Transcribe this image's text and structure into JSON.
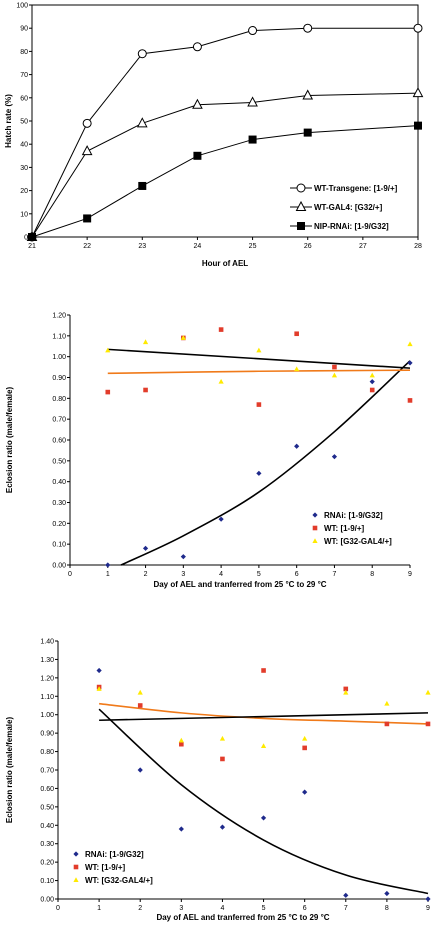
{
  "chart_data": [
    {
      "type": "line",
      "xlabel": "Hour of AEL",
      "ylabel": "Hatch rate (%)",
      "x": [
        21,
        22,
        23,
        24,
        25,
        26,
        27,
        28
      ],
      "xticks": [
        "21",
        "22",
        "23",
        "24",
        "25",
        "26",
        "27",
        "28"
      ],
      "xlim": [
        21,
        28
      ],
      "ylim": [
        0,
        100
      ],
      "yticks": [
        "0",
        "10",
        "20",
        "30",
        "40",
        "50",
        "60",
        "70",
        "80",
        "90",
        "100"
      ],
      "grid": false,
      "legend_position": "bottom-right",
      "series": [
        {
          "name": "WT-Transgene: [1-9/+]",
          "marker": "open-circle",
          "x": [
            21,
            22,
            23,
            24,
            25,
            26,
            28
          ],
          "values": [
            0,
            49,
            79,
            82,
            89,
            90,
            90
          ]
        },
        {
          "name": "WT-GAL4: [G32/+]",
          "marker": "open-triangle",
          "x": [
            21,
            22,
            23,
            24,
            25,
            26,
            28
          ],
          "values": [
            0,
            37,
            49,
            57,
            58,
            61,
            62
          ]
        },
        {
          "name": "NIP-RNAi: [1-9/G32]",
          "marker": "filled-square",
          "x": [
            21,
            22,
            23,
            24,
            25,
            26,
            28
          ],
          "values": [
            0,
            8,
            22,
            35,
            42,
            45,
            48
          ]
        }
      ]
    },
    {
      "type": "scatter",
      "xlabel": "Day of AEL and tranferred from 25 °C to 29 °C",
      "ylabel": "Eclosion ratio (male/female)",
      "xlim": [
        0,
        9
      ],
      "xticks": [
        "0",
        "1",
        "2",
        "3",
        "4",
        "5",
        "6",
        "7",
        "8",
        "9"
      ],
      "ylim": [
        0,
        1.2
      ],
      "yticks": [
        "0.00",
        "0.10",
        "0.20",
        "0.30",
        "0.40",
        "0.50",
        "0.60",
        "0.70",
        "0.80",
        "0.90",
        "1.00",
        "1.10",
        "1.20"
      ],
      "grid": false,
      "legend_position": "bottom-right",
      "series": [
        {
          "name": "RNAi: [1-9/G32]",
          "color": "#1f2a8c",
          "marker": "diamond",
          "x": [
            1,
            2,
            3,
            4,
            5,
            6,
            7,
            8,
            9
          ],
          "values": [
            0.0,
            0.08,
            0.04,
            0.22,
            0.44,
            0.57,
            0.52,
            0.88,
            0.97
          ],
          "trend": {
            "type": "poly2",
            "color": "#000000",
            "points": [
              [
                1.35,
                0
              ],
              [
                3,
                0.14
              ],
              [
                5,
                0.35
              ],
              [
                7,
                0.64
              ],
              [
                9,
                0.98
              ]
            ]
          }
        },
        {
          "name": "WT: [1-9/+]",
          "color": "#e23c2b",
          "marker": "square",
          "x": [
            1,
            2,
            3,
            4,
            5,
            6,
            7,
            8,
            9
          ],
          "values": [
            0.83,
            0.84,
            1.09,
            1.13,
            0.77,
            1.11,
            0.95,
            0.84,
            0.79
          ],
          "trend": {
            "type": "poly2",
            "color": "#f07a1a",
            "points": [
              [
                1,
                0.92
              ],
              [
                5,
                0.93
              ],
              [
                9,
                0.935
              ]
            ]
          }
        },
        {
          "name": "WT: [G32-GAL4/+]",
          "color": "#ffea00",
          "marker": "triangle",
          "x": [
            1,
            2,
            3,
            4,
            5,
            6,
            7,
            8,
            9
          ],
          "values": [
            1.03,
            1.07,
            1.09,
            0.88,
            1.03,
            0.94,
            0.91,
            0.91,
            1.06
          ],
          "trend": {
            "type": "linear",
            "color": "#000000",
            "points": [
              [
                1,
                1.035
              ],
              [
                9,
                0.945
              ]
            ]
          }
        }
      ]
    },
    {
      "type": "scatter",
      "xlabel": "Day of AEL and tranferred from 25 °C to 29 °C",
      "ylabel": "Eclosion ratio (male/female)",
      "xlim": [
        0,
        9
      ],
      "xticks": [
        "0",
        "1",
        "2",
        "3",
        "4",
        "5",
        "6",
        "7",
        "8",
        "9"
      ],
      "ylim": [
        0,
        1.4
      ],
      "yticks": [
        "0.00",
        "0.10",
        "0.20",
        "0.30",
        "0.40",
        "0.50",
        "0.60",
        "0.70",
        "0.80",
        "0.90",
        "1.00",
        "1.10",
        "1.20",
        "1.30",
        "1.40"
      ],
      "grid": false,
      "legend_position": "bottom-left",
      "series": [
        {
          "name": "RNAi: [1-9/G32]",
          "color": "#1f2a8c",
          "marker": "diamond",
          "x": [
            1,
            2,
            3,
            4,
            5,
            6,
            7,
            8,
            9
          ],
          "values": [
            1.24,
            0.7,
            0.38,
            0.39,
            0.44,
            0.58,
            0.02,
            0.03,
            0.0
          ],
          "trend": {
            "type": "poly2",
            "color": "#000000",
            "points": [
              [
                1,
                1.03
              ],
              [
                3,
                0.62
              ],
              [
                5,
                0.32
              ],
              [
                7,
                0.13
              ],
              [
                9,
                0.03
              ]
            ]
          }
        },
        {
          "name": "WT: [1-9/+]",
          "color": "#e23c2b",
          "marker": "square",
          "x": [
            1,
            2,
            3,
            4,
            5,
            6,
            7,
            8,
            9
          ],
          "values": [
            1.15,
            1.05,
            0.84,
            0.76,
            1.24,
            0.82,
            1.14,
            0.95,
            0.95
          ],
          "trend": {
            "type": "poly2",
            "color": "#f07a1a",
            "points": [
              [
                1,
                1.06
              ],
              [
                3,
                1.01
              ],
              [
                5,
                0.98
              ],
              [
                7,
                0.965
              ],
              [
                9,
                0.95
              ]
            ]
          }
        },
        {
          "name": "WT: [G32-GAL4/+]",
          "color": "#ffea00",
          "marker": "triangle",
          "x": [
            1,
            2,
            3,
            4,
            5,
            6,
            7,
            8,
            9
          ],
          "values": [
            1.14,
            1.12,
            0.86,
            0.87,
            0.83,
            0.87,
            1.12,
            1.06,
            1.12
          ],
          "trend": {
            "type": "linear",
            "color": "#000000",
            "points": [
              [
                1,
                0.97
              ],
              [
                9,
                1.01
              ]
            ]
          }
        }
      ]
    }
  ]
}
